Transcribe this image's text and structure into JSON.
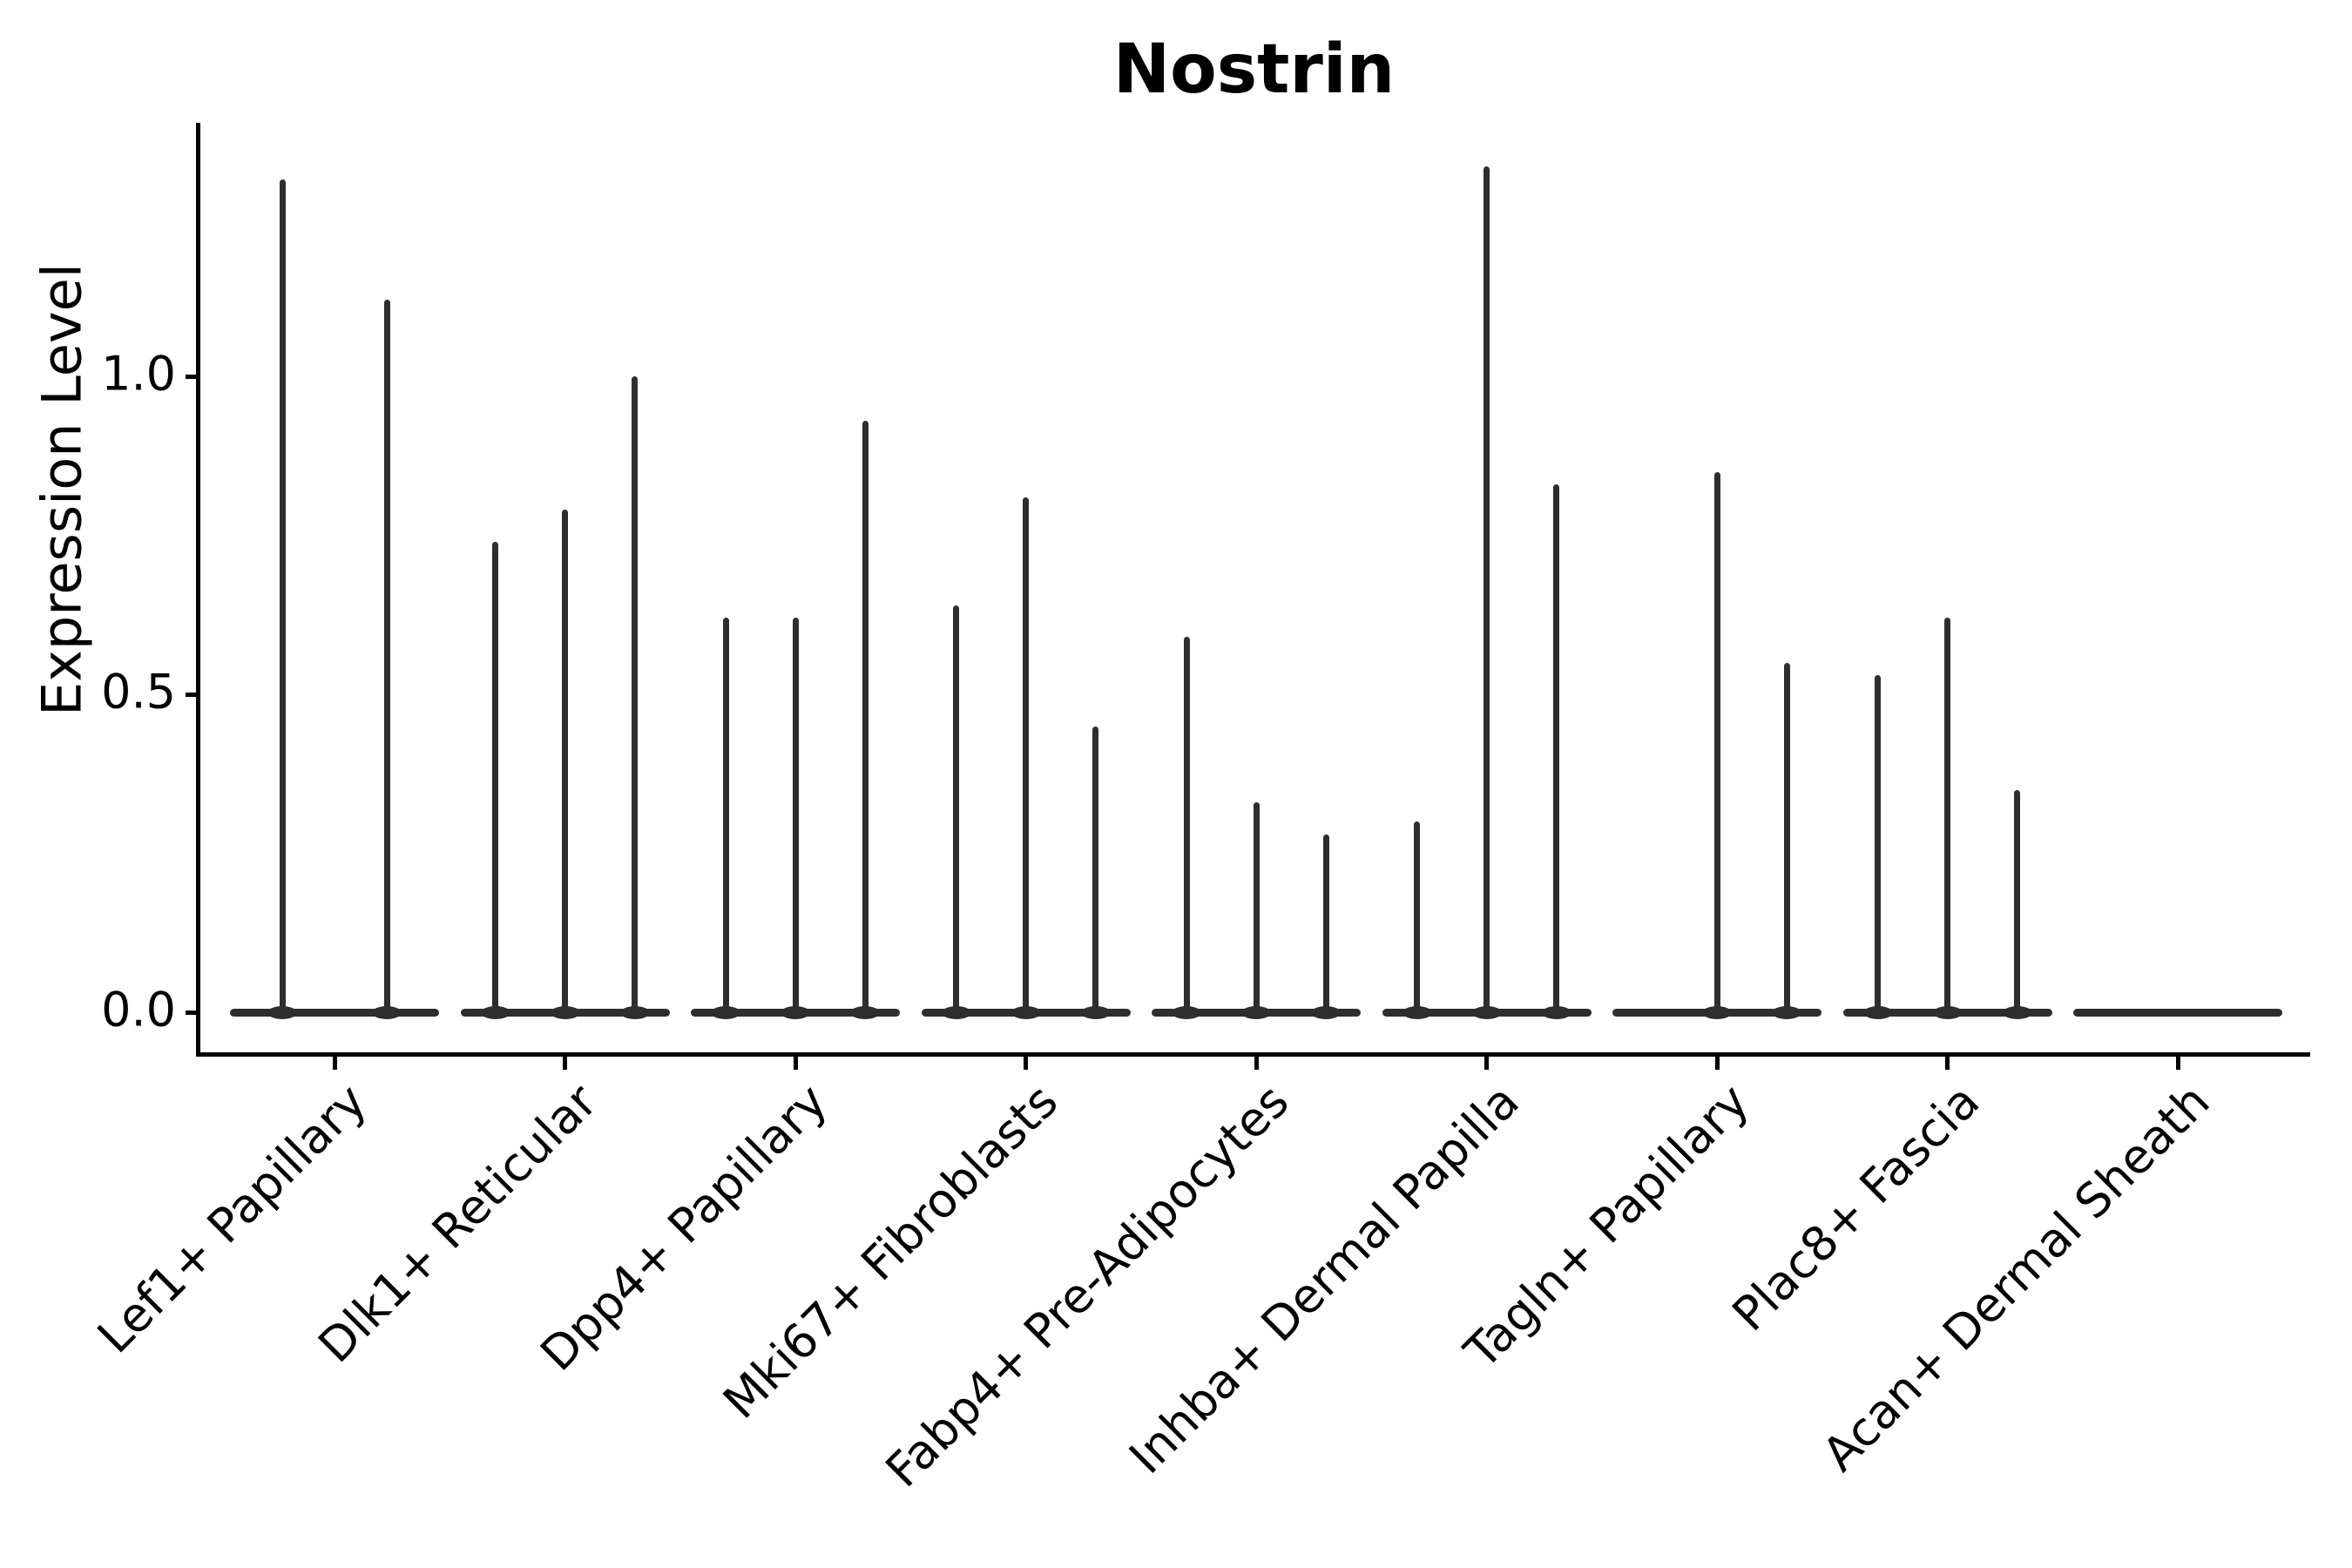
{
  "chart_data": {
    "type": "violin",
    "title": "Nostrin",
    "ylabel": "Expression Level",
    "xlabel": "",
    "grid": false,
    "legend_position": "none",
    "violin_color": "#2e2e2e",
    "axis_color": "#000000",
    "ylim": [
      -0.07,
      1.4
    ],
    "yticks": [
      {
        "value": 0.0,
        "label": "0.0"
      },
      {
        "value": 0.5,
        "label": "0.5"
      },
      {
        "value": 1.0,
        "label": "1.0"
      }
    ],
    "categories": [
      {
        "label": "Lef1+ Papillary",
        "violin_max_values": [
          1.31,
          1.12
        ]
      },
      {
        "label": "Dlk1+ Reticular",
        "violin_max_values": [
          0.74,
          0.79,
          1.0
        ]
      },
      {
        "label": "Dpp4+ Papillary",
        "violin_max_values": [
          0.62,
          0.62,
          0.93
        ]
      },
      {
        "label": "Mki67+ Fibroblasts",
        "violin_max_values": [
          0.64,
          0.81,
          0.45
        ]
      },
      {
        "label": "Fabp4+ Pre-Adipocytes",
        "violin_max_values": [
          0.59,
          0.33,
          0.28
        ]
      },
      {
        "label": "Inhba+ Dermal Papilla",
        "violin_max_values": [
          0.3,
          1.33,
          0.83
        ]
      },
      {
        "label": "Tagln+ Papillary",
        "violin_max_values": [
          0.0,
          0.85,
          0.55
        ]
      },
      {
        "label": "Plac8+ Fascia",
        "violin_max_values": [
          0.53,
          0.62,
          0.35
        ]
      },
      {
        "label": "Acan+ Dermal Sheath",
        "violin_max_values": [
          0.0,
          0.0,
          0.0
        ]
      }
    ]
  }
}
